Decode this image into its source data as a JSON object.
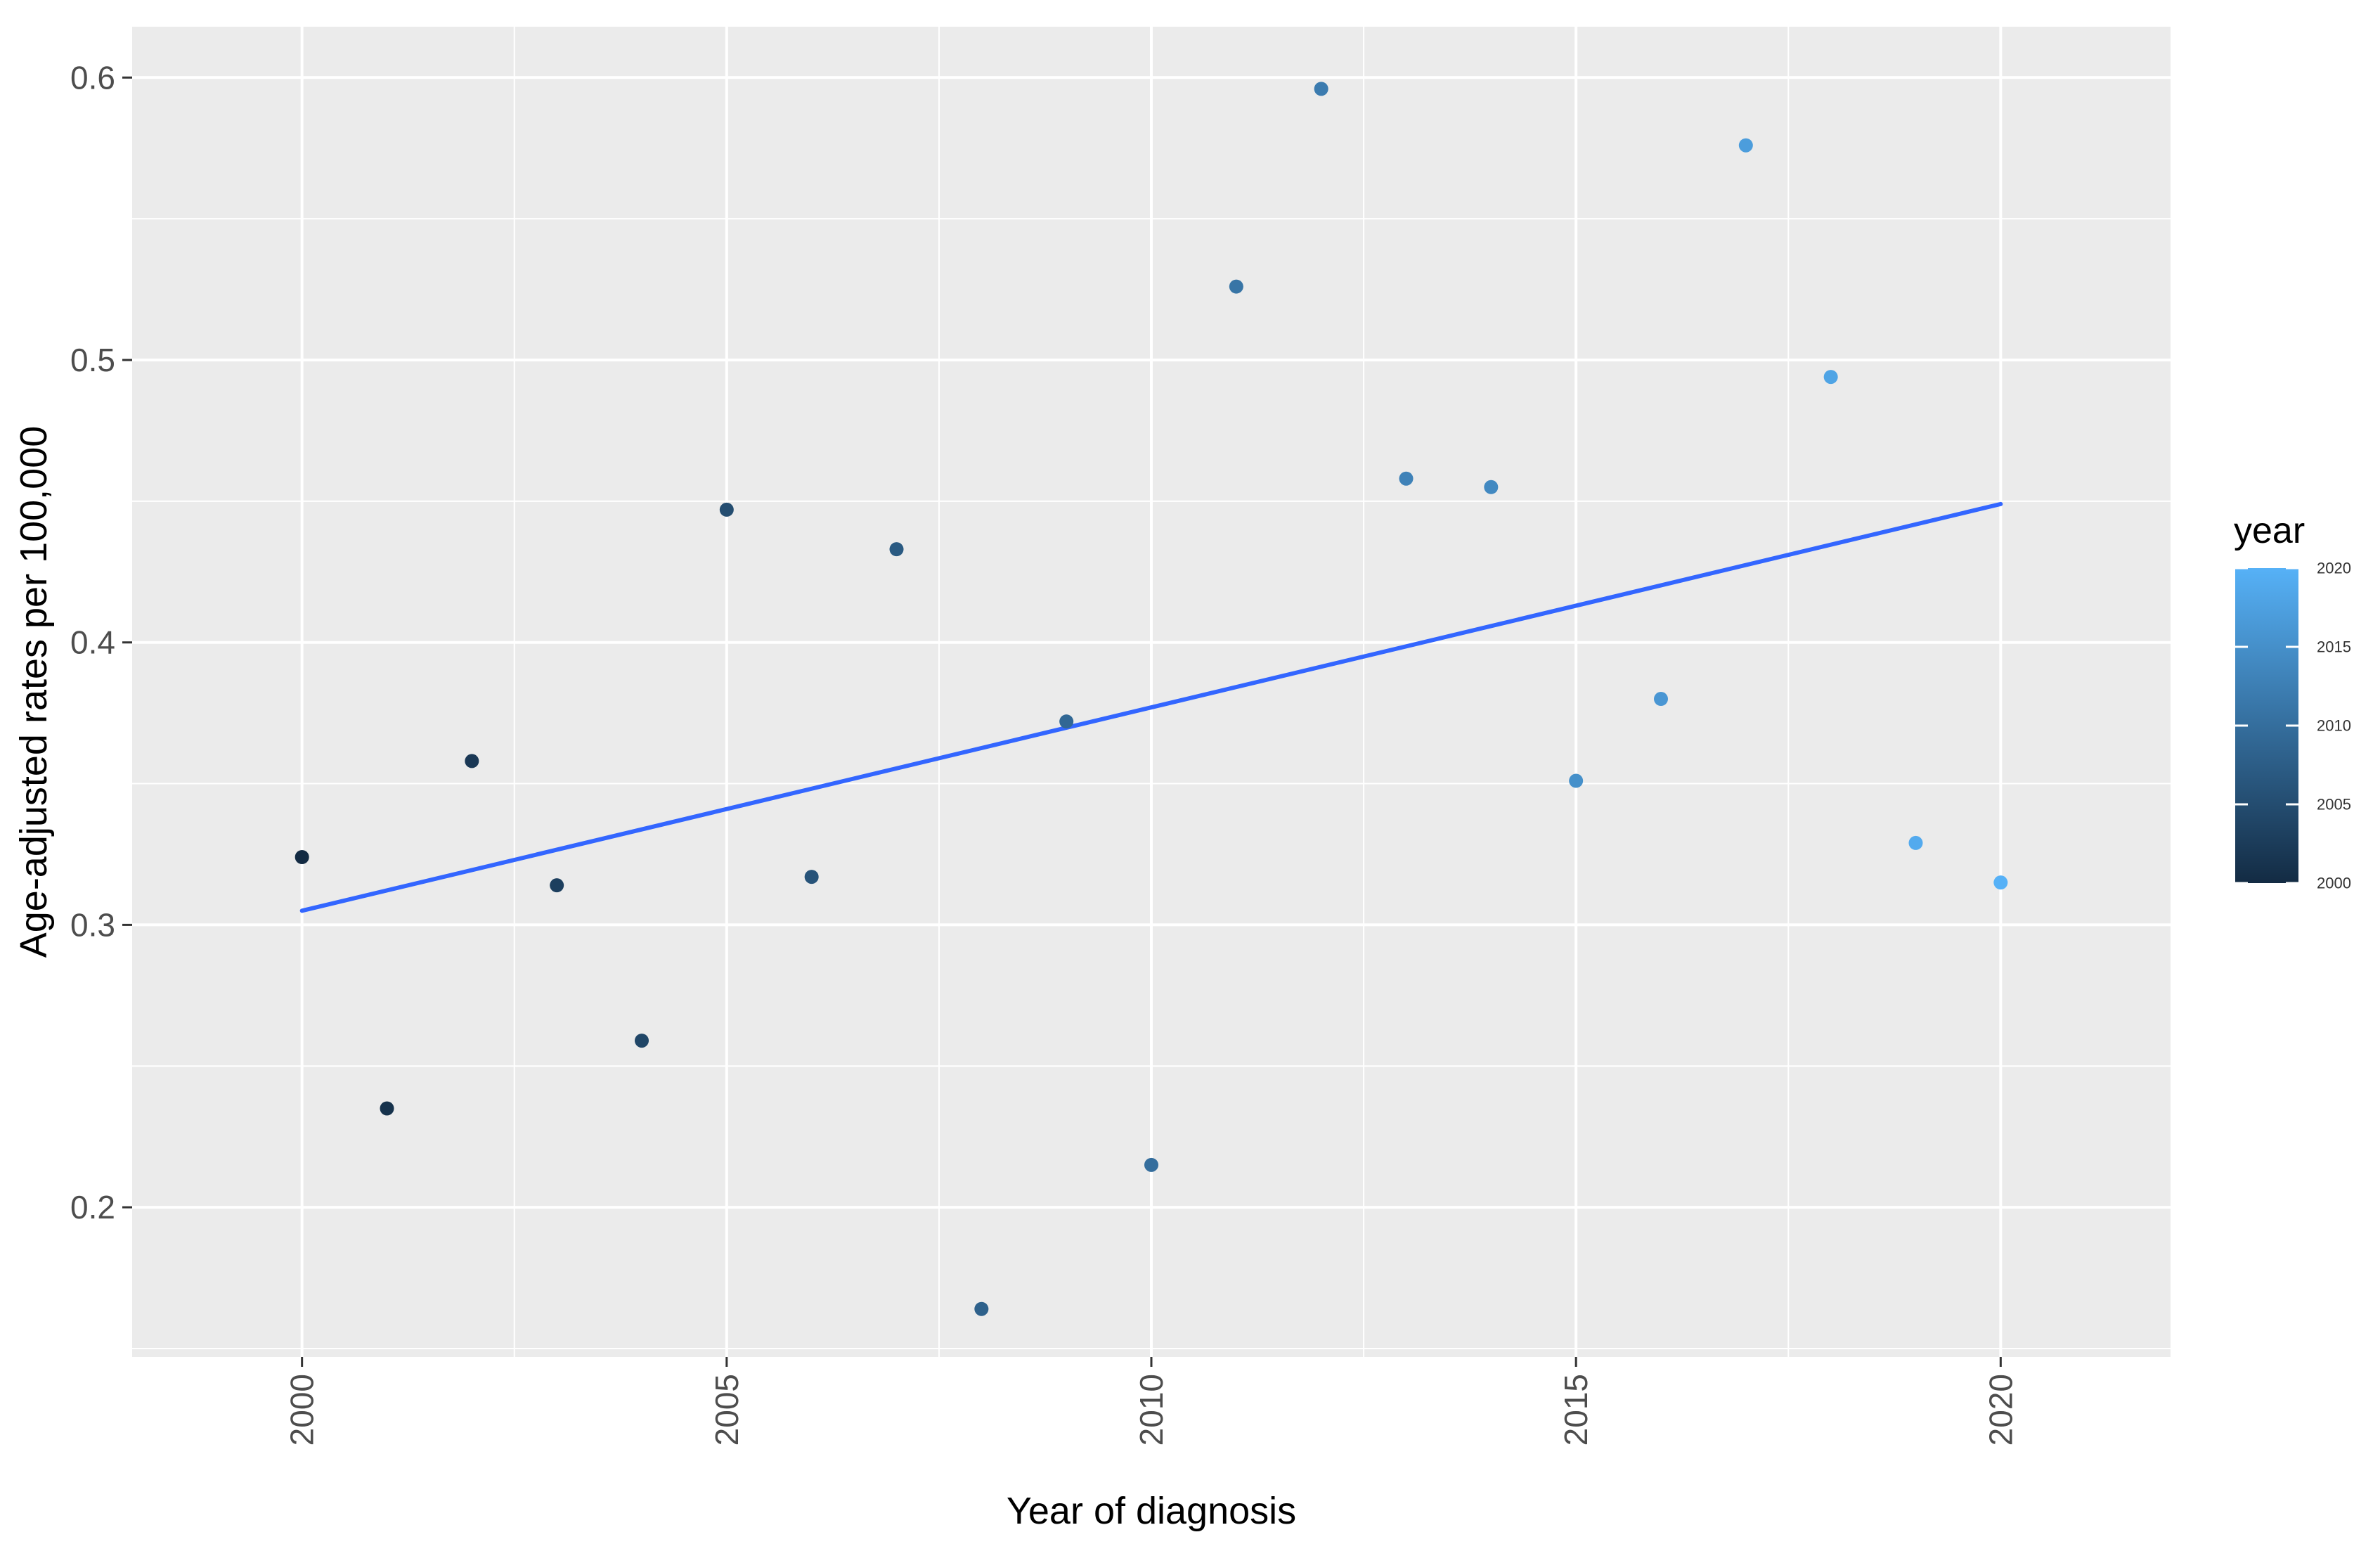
{
  "chart_data": {
    "type": "scatter",
    "title": "",
    "xlabel": "Year of diagnosis",
    "ylabel": "Age-adjusted rates per 100,000",
    "xlim": [
      1998.0,
      2022.0
    ],
    "ylim": [
      0.147,
      0.618
    ],
    "x_ticks": [
      2000,
      2005,
      2010,
      2015,
      2020
    ],
    "x_tick_labels": [
      "2000",
      "2005",
      "2010",
      "2015",
      "2020"
    ],
    "y_ticks": [
      0.2,
      0.3,
      0.4,
      0.5,
      0.6
    ],
    "y_tick_labels": [
      "0.2",
      "0.3",
      "0.4",
      "0.5",
      "0.6"
    ],
    "grid": true,
    "series": [
      {
        "x": [
          2000,
          2001,
          2002,
          2003,
          2004,
          2005,
          2006,
          2007,
          2008,
          2009,
          2010,
          2011,
          2012,
          2013,
          2014,
          2015,
          2016,
          2017,
          2018,
          2019,
          2020
        ],
        "y": [
          0.324,
          0.235,
          0.358,
          0.314,
          0.259,
          0.447,
          0.317,
          0.433,
          0.164,
          0.372,
          0.215,
          0.526,
          0.596,
          0.458,
          0.455,
          0.351,
          0.38,
          0.576,
          0.494,
          0.329,
          0.315
        ]
      }
    ],
    "trend_line": {
      "x": [
        2000,
        2020
      ],
      "y": [
        0.305,
        0.449
      ],
      "color": "#3366ff"
    },
    "color_scale": {
      "legend_title": "year",
      "field": "year",
      "min": 2000,
      "max": 2020,
      "low_color": "#132b43",
      "high_color": "#56b1f7",
      "breaks": [
        2000,
        2005,
        2010,
        2015,
        2020
      ],
      "break_labels": [
        "2000",
        "2005",
        "2010",
        "2015",
        "2020"
      ],
      "legend_position": "right"
    },
    "panel_background": "#ebebeb",
    "grid_color": "#ffffff"
  }
}
